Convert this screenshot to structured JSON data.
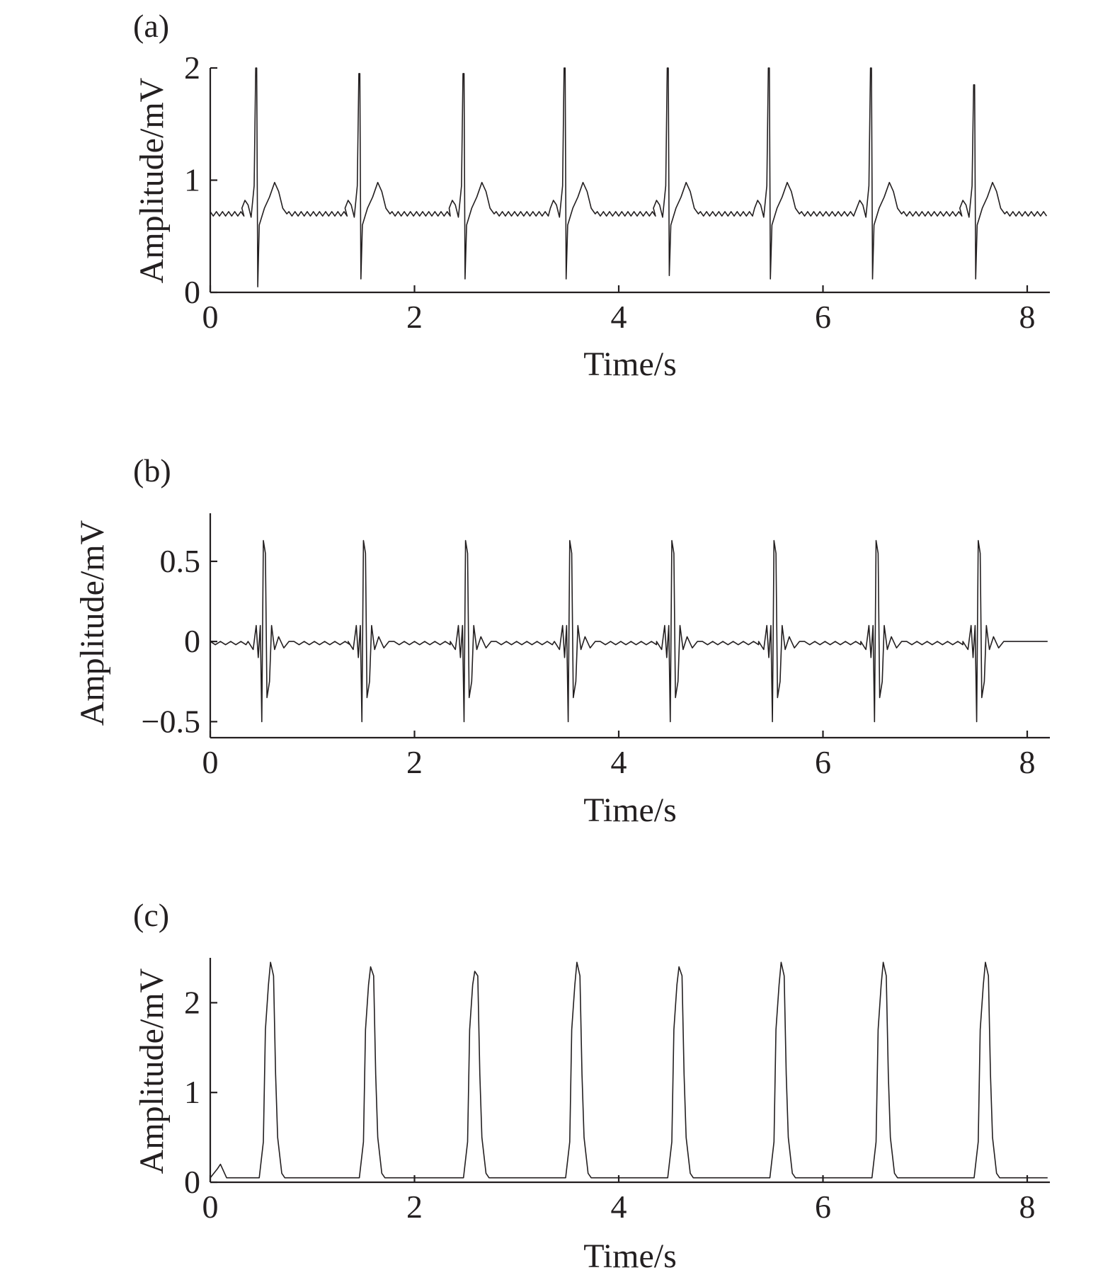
{
  "figure": {
    "background": "#ffffff",
    "line_color": "#231f20"
  },
  "chart_data": [
    {
      "type": "line",
      "panel_label": "(a)",
      "xlabel": "Time/s",
      "ylabel": "Amplitude/mV",
      "xlim": [
        0,
        8.2
      ],
      "ylim": [
        0,
        2
      ],
      "xticks": [
        0,
        2,
        4,
        6,
        8
      ],
      "xtick_labels": [
        "0",
        "2",
        "4",
        "6",
        "8"
      ],
      "yticks": [
        0,
        1,
        2
      ],
      "ytick_labels": [
        "0",
        "1",
        "2"
      ],
      "grid": false,
      "baseline": 0.7,
      "beats": [
        {
          "r_time": 0.45,
          "r_peak": 2.0,
          "s_trough": 0.05
        },
        {
          "r_time": 1.46,
          "r_peak": 1.95,
          "s_trough": 0.12
        },
        {
          "r_time": 2.48,
          "r_peak": 1.95,
          "s_trough": 0.12
        },
        {
          "r_time": 3.47,
          "r_peak": 2.0,
          "s_trough": 0.12
        },
        {
          "r_time": 4.48,
          "r_peak": 2.0,
          "s_trough": 0.15
        },
        {
          "r_time": 5.47,
          "r_peak": 2.0,
          "s_trough": 0.12
        },
        {
          "r_time": 6.47,
          "r_peak": 2.0,
          "s_trough": 0.12
        },
        {
          "r_time": 7.48,
          "r_peak": 1.85,
          "s_trough": 0.12
        }
      ]
    },
    {
      "type": "line",
      "panel_label": "(b)",
      "xlabel": "Time/s",
      "ylabel": "Amplitude/mV",
      "xlim": [
        0,
        8.2
      ],
      "ylim": [
        -0.6,
        0.8
      ],
      "xticks": [
        0,
        2,
        4,
        6,
        8
      ],
      "xtick_labels": [
        "0",
        "2",
        "4",
        "6",
        "8"
      ],
      "yticks": [
        -0.5,
        0,
        0.5
      ],
      "ytick_labels": [
        "−0.5",
        "0",
        "0.5"
      ],
      "grid": false,
      "baseline": 0,
      "beats": [
        {
          "r_time": 0.52,
          "r_peak": 0.63,
          "s_trough": -0.5
        },
        {
          "r_time": 1.5,
          "r_peak": 0.63,
          "s_trough": -0.5
        },
        {
          "r_time": 2.5,
          "r_peak": 0.63,
          "s_trough": -0.5
        },
        {
          "r_time": 3.52,
          "r_peak": 0.63,
          "s_trough": -0.5
        },
        {
          "r_time": 4.52,
          "r_peak": 0.63,
          "s_trough": -0.5
        },
        {
          "r_time": 5.52,
          "r_peak": 0.63,
          "s_trough": -0.5
        },
        {
          "r_time": 6.52,
          "r_peak": 0.63,
          "s_trough": -0.5
        },
        {
          "r_time": 7.52,
          "r_peak": 0.63,
          "s_trough": -0.5
        }
      ]
    },
    {
      "type": "line",
      "panel_label": "(c)",
      "xlabel": "Time/s",
      "ylabel": "Amplitude/mV",
      "xlim": [
        0,
        8.2
      ],
      "ylim": [
        0,
        2.5
      ],
      "xticks": [
        0,
        2,
        4,
        6,
        8
      ],
      "xtick_labels": [
        "0",
        "2",
        "4",
        "6",
        "8"
      ],
      "yticks": [
        0,
        1,
        2
      ],
      "ytick_labels": [
        "0",
        "1",
        "2"
      ],
      "grid": false,
      "baseline": 0.05,
      "initial_bump": {
        "time": 0.1,
        "value": 0.2
      },
      "beats": [
        {
          "time": 0.6,
          "peak": 2.45
        },
        {
          "time": 1.58,
          "peak": 2.4
        },
        {
          "time": 2.6,
          "peak": 2.35
        },
        {
          "time": 3.6,
          "peak": 2.45
        },
        {
          "time": 4.6,
          "peak": 2.4
        },
        {
          "time": 5.6,
          "peak": 2.45
        },
        {
          "time": 6.6,
          "peak": 2.45
        },
        {
          "time": 7.6,
          "peak": 2.45
        }
      ]
    }
  ]
}
